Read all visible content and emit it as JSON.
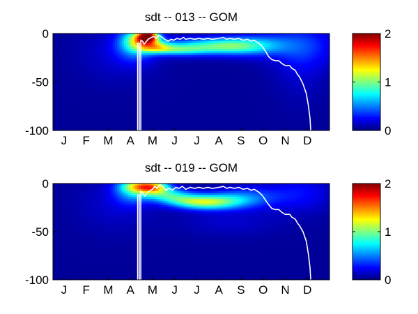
{
  "figure": {
    "background": "#ffffff"
  },
  "chart_data": [
    {
      "type": "heatmap",
      "title": "sdt -- 013 -- GOM",
      "xlabel": "",
      "ylabel": "",
      "x_tick_labels": [
        "J",
        "F",
        "M",
        "A",
        "M",
        "J",
        "J",
        "A",
        "S",
        "O",
        "N",
        "D"
      ],
      "xlim": [
        0,
        12.5
      ],
      "y_ticks": [
        0,
        -50,
        -100
      ],
      "y_tick_labels": [
        "0",
        "-50",
        "-100"
      ],
      "ylim": [
        -100,
        0
      ],
      "colorbar": {
        "ticks": [
          0,
          1,
          2
        ],
        "tick_labels": [
          "0",
          "1",
          "2"
        ],
        "range": [
          0,
          2
        ],
        "colormap": "jet"
      },
      "background_value": 0.05,
      "features": [
        {
          "x": 3.75,
          "y": -10,
          "sx": 0.6,
          "sy": 12,
          "v": 0.55
        },
        {
          "x": 4.3,
          "y": -3,
          "sx": 0.3,
          "sy": 4,
          "v": 1.45
        },
        {
          "x": 4.1,
          "y": -7,
          "sx": 0.5,
          "sy": 6,
          "v": 0.8
        },
        {
          "x": 4.7,
          "y": -14,
          "sx": 0.5,
          "sy": 4,
          "v": 0.6
        },
        {
          "x": 5.6,
          "y": -17,
          "sx": 0.9,
          "sy": 4,
          "v": 0.55
        },
        {
          "x": 6.8,
          "y": -13,
          "sx": 1.3,
          "sy": 6,
          "v": 0.55
        },
        {
          "x": 8.2,
          "y": -13,
          "sx": 1.0,
          "sy": 6,
          "v": 0.5
        },
        {
          "x": 9.4,
          "y": -12,
          "sx": 1.0,
          "sy": 8,
          "v": 0.35
        },
        {
          "x": 11.3,
          "y": -12,
          "sx": 1.1,
          "sy": 16,
          "v": 0.25
        },
        {
          "x": 3.0,
          "y": -20,
          "sx": 1.2,
          "sy": 20,
          "v": 0.12
        },
        {
          "x": 11.2,
          "y": -35,
          "sx": 0.8,
          "sy": 25,
          "v": 0.1
        }
      ],
      "line": {
        "color": "#ffffff",
        "points": [
          [
            3.83,
            -100
          ],
          [
            3.83,
            -10
          ],
          [
            3.9,
            -10
          ],
          [
            3.9,
            -100
          ],
          [
            3.97,
            -100
          ],
          [
            3.97,
            -7
          ],
          [
            4.05,
            -8
          ],
          [
            4.12,
            -11
          ],
          [
            4.2,
            -9
          ],
          [
            4.3,
            -6
          ],
          [
            4.45,
            -4
          ],
          [
            4.55,
            -3
          ],
          [
            4.65,
            -5
          ],
          [
            4.8,
            -2
          ],
          [
            4.95,
            -4
          ],
          [
            5.05,
            -6
          ],
          [
            5.2,
            -8
          ],
          [
            5.35,
            -6
          ],
          [
            5.45,
            -7
          ],
          [
            5.6,
            -5
          ],
          [
            5.75,
            -6
          ],
          [
            5.9,
            -4
          ],
          [
            6.0,
            -6
          ],
          [
            6.2,
            -5
          ],
          [
            6.4,
            -6
          ],
          [
            6.6,
            -5
          ],
          [
            6.8,
            -6
          ],
          [
            7.0,
            -5
          ],
          [
            7.2,
            -6
          ],
          [
            7.5,
            -5
          ],
          [
            7.7,
            -4
          ],
          [
            7.85,
            -6
          ],
          [
            8.0,
            -5
          ],
          [
            8.2,
            -6
          ],
          [
            8.4,
            -5
          ],
          [
            8.6,
            -7
          ],
          [
            8.8,
            -6
          ],
          [
            8.95,
            -8
          ],
          [
            9.1,
            -7
          ],
          [
            9.3,
            -10
          ],
          [
            9.45,
            -13
          ],
          [
            9.6,
            -18
          ],
          [
            9.75,
            -24
          ],
          [
            9.9,
            -27
          ],
          [
            10.05,
            -28
          ],
          [
            10.2,
            -28
          ],
          [
            10.35,
            -31
          ],
          [
            10.5,
            -33
          ],
          [
            10.7,
            -33
          ],
          [
            10.8,
            -36
          ],
          [
            10.95,
            -38
          ],
          [
            11.05,
            -42
          ],
          [
            11.15,
            -45
          ],
          [
            11.3,
            -52
          ],
          [
            11.45,
            -62
          ],
          [
            11.55,
            -75
          ],
          [
            11.62,
            -88
          ],
          [
            11.65,
            -100
          ]
        ]
      }
    },
    {
      "type": "heatmap",
      "title": "sdt -- 019 -- GOM",
      "xlabel": "",
      "ylabel": "",
      "x_tick_labels": [
        "J",
        "F",
        "M",
        "A",
        "M",
        "J",
        "J",
        "A",
        "S",
        "O",
        "N",
        "D"
      ],
      "xlim": [
        0,
        12.5
      ],
      "y_ticks": [
        0,
        -50,
        -100
      ],
      "y_tick_labels": [
        "0",
        "-50",
        "-100"
      ],
      "ylim": [
        -100,
        0
      ],
      "colorbar": {
        "ticks": [
          0,
          1,
          2
        ],
        "tick_labels": [
          "0",
          "1",
          "2"
        ],
        "range": [
          0,
          2
        ],
        "colormap": "jet"
      },
      "background_value": 0.05,
      "features": [
        {
          "x": 4.0,
          "y": -3,
          "sx": 0.6,
          "sy": 5,
          "v": 0.85
        },
        {
          "x": 4.6,
          "y": -4,
          "sx": 0.5,
          "sy": 5,
          "v": 0.8
        },
        {
          "x": 3.6,
          "y": -8,
          "sx": 0.6,
          "sy": 10,
          "v": 0.45
        },
        {
          "x": 5.2,
          "y": -12,
          "sx": 0.7,
          "sy": 5,
          "v": 0.55
        },
        {
          "x": 6.0,
          "y": -18,
          "sx": 0.8,
          "sy": 5,
          "v": 0.55
        },
        {
          "x": 6.9,
          "y": -20,
          "sx": 0.8,
          "sy": 5,
          "v": 0.55
        },
        {
          "x": 7.8,
          "y": -18,
          "sx": 0.9,
          "sy": 6,
          "v": 0.5
        },
        {
          "x": 9.0,
          "y": -14,
          "sx": 1.0,
          "sy": 8,
          "v": 0.3
        },
        {
          "x": 11.2,
          "y": -10,
          "sx": 1.0,
          "sy": 14,
          "v": 0.2
        },
        {
          "x": 2.8,
          "y": -22,
          "sx": 1.2,
          "sy": 20,
          "v": 0.1
        },
        {
          "x": 8.0,
          "y": -40,
          "sx": 1.6,
          "sy": 10,
          "v": 0.1
        }
      ],
      "line": {
        "color": "#ffffff",
        "points": [
          [
            3.83,
            -100
          ],
          [
            3.83,
            -12
          ],
          [
            3.9,
            -12
          ],
          [
            3.9,
            -100
          ],
          [
            3.97,
            -100
          ],
          [
            3.97,
            -8
          ],
          [
            4.05,
            -10
          ],
          [
            4.15,
            -13
          ],
          [
            4.25,
            -10
          ],
          [
            4.35,
            -8
          ],
          [
            4.5,
            -6
          ],
          [
            4.6,
            -3
          ],
          [
            4.7,
            -5
          ],
          [
            4.85,
            -1
          ],
          [
            5.0,
            -4
          ],
          [
            5.1,
            -7
          ],
          [
            5.25,
            -5
          ],
          [
            5.4,
            -7
          ],
          [
            5.55,
            -4
          ],
          [
            5.7,
            -5
          ],
          [
            5.85,
            -3
          ],
          [
            6.0,
            -6
          ],
          [
            6.2,
            -4
          ],
          [
            6.4,
            -5
          ],
          [
            6.6,
            -4
          ],
          [
            6.8,
            -5
          ],
          [
            7.0,
            -4
          ],
          [
            7.2,
            -5
          ],
          [
            7.5,
            -4
          ],
          [
            7.7,
            -3
          ],
          [
            7.85,
            -5
          ],
          [
            8.0,
            -4
          ],
          [
            8.2,
            -5
          ],
          [
            8.4,
            -4
          ],
          [
            8.6,
            -6
          ],
          [
            8.8,
            -5
          ],
          [
            8.95,
            -7
          ],
          [
            9.1,
            -6
          ],
          [
            9.3,
            -9
          ],
          [
            9.45,
            -12
          ],
          [
            9.6,
            -17
          ],
          [
            9.75,
            -22
          ],
          [
            9.9,
            -26
          ],
          [
            10.05,
            -27
          ],
          [
            10.2,
            -27
          ],
          [
            10.35,
            -30
          ],
          [
            10.5,
            -32
          ],
          [
            10.7,
            -32
          ],
          [
            10.8,
            -35
          ],
          [
            10.95,
            -37
          ],
          [
            11.05,
            -41
          ],
          [
            11.15,
            -44
          ],
          [
            11.3,
            -50
          ],
          [
            11.45,
            -60
          ],
          [
            11.55,
            -74
          ],
          [
            11.62,
            -88
          ],
          [
            11.65,
            -100
          ]
        ]
      }
    }
  ]
}
